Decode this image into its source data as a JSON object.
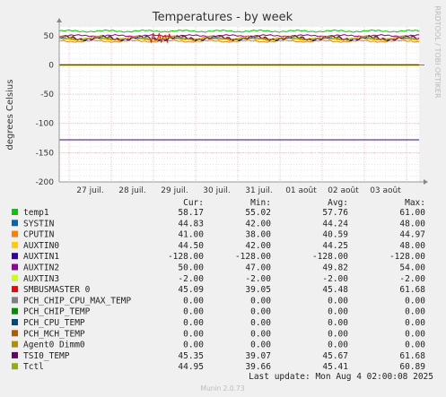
{
  "chart_data": {
    "type": "line",
    "title": "Temperatures - by week",
    "ylabel": "degrees Celsius",
    "side_label": "RRDTOOL / TOBI OETIKER",
    "ylim": [
      -200,
      65
    ],
    "yticks": [
      "50",
      "0",
      "-50",
      "-100",
      "-150",
      "-200"
    ],
    "ytick_values": [
      50,
      0,
      -50,
      -100,
      -150,
      -200
    ],
    "xticks": [
      "27 juil.",
      "28 juil.",
      "29 juil.",
      "30 juil.",
      "31 juil.",
      "01 août",
      "02 août",
      "03 août"
    ],
    "grid": true,
    "legend_headers": [
      "Cur:",
      "Min:",
      "Avg:",
      "Max:"
    ],
    "series": [
      {
        "name": "temp1",
        "color": "#00cc00",
        "cur": "58.17",
        "min": "55.02",
        "avg": "57.76",
        "max": "61.00"
      },
      {
        "name": "SYSTIN",
        "color": "#0066b3",
        "cur": "44.83",
        "min": "42.00",
        "avg": "44.24",
        "max": "48.00"
      },
      {
        "name": "CPUTIN",
        "color": "#ff8000",
        "cur": "41.00",
        "min": "38.00",
        "avg": "40.59",
        "max": "44.97"
      },
      {
        "name": "AUXTIN0",
        "color": "#ffcc00",
        "cur": "44.50",
        "min": "42.00",
        "avg": "44.25",
        "max": "48.00"
      },
      {
        "name": "AUXTIN1",
        "color": "#330099",
        "cur": "-128.00",
        "min": "-128.00",
        "avg": "-128.00",
        "max": "-128.00"
      },
      {
        "name": "AUXTIN2",
        "color": "#990099",
        "cur": "50.00",
        "min": "47.00",
        "avg": "49.82",
        "max": "54.00"
      },
      {
        "name": "AUXTIN3",
        "color": "#ccff00",
        "cur": "-2.00",
        "min": "-2.00",
        "avg": "-2.00",
        "max": "-2.00"
      },
      {
        "name": "SMBUSMASTER 0",
        "color": "#ff0000",
        "cur": "45.09",
        "min": "39.05",
        "avg": "45.48",
        "max": "61.68"
      },
      {
        "name": "PCH_CHIP_CPU_MAX_TEMP",
        "color": "#808080",
        "cur": "0.00",
        "min": "0.00",
        "avg": "0.00",
        "max": "0.00"
      },
      {
        "name": "PCH_CHIP_TEMP",
        "color": "#008f00",
        "cur": "0.00",
        "min": "0.00",
        "avg": "0.00",
        "max": "0.00"
      },
      {
        "name": "PCH_CPU_TEMP",
        "color": "#00487d",
        "cur": "0.00",
        "min": "0.00",
        "avg": "0.00",
        "max": "0.00"
      },
      {
        "name": "PCH_MCH_TEMP",
        "color": "#b35a00",
        "cur": "0.00",
        "min": "0.00",
        "avg": "0.00",
        "max": "0.00"
      },
      {
        "name": "Agent0 Dimm0",
        "color": "#b38f00",
        "cur": "0.00",
        "min": "0.00",
        "avg": "0.00",
        "max": "0.00"
      },
      {
        "name": "TSI0_TEMP",
        "color": "#6b006b",
        "cur": "45.35",
        "min": "39.07",
        "avg": "45.67",
        "max": "61.68"
      },
      {
        "name": "Tctl",
        "color": "#8fb300",
        "cur": "44.95",
        "min": "39.66",
        "avg": "45.41",
        "max": "60.89"
      }
    ],
    "last_update": "Last update: Mon Aug  4 02:00:08 2025",
    "footer": "Munin 2.0.73"
  }
}
